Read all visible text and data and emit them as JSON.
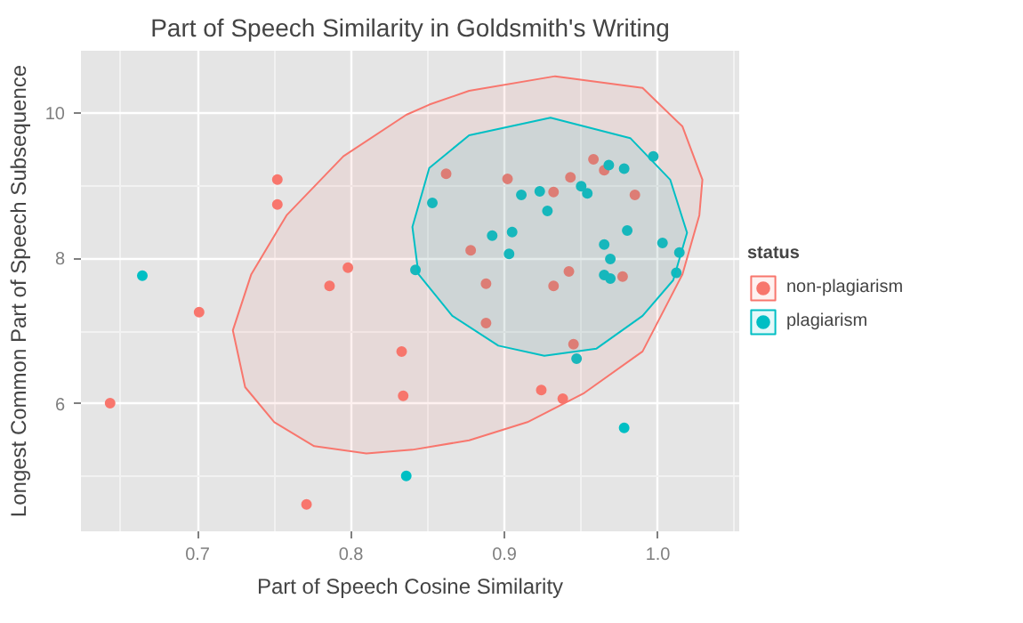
{
  "chart_data": {
    "type": "scatter",
    "title": "Part of Speech Similarity in Goldsmith's Writing",
    "xlabel": "Part of Speech Cosine Similarity",
    "ylabel": "Longest Common Part of Speech Subsequence",
    "legend_title": "status",
    "legend": "right",
    "grid": true,
    "marker": "circle",
    "xlim": [
      0.624,
      1.053
    ],
    "ylim": [
      4.25,
      10.85
    ],
    "xticks": [
      0.7,
      0.8,
      0.9,
      {
        "value": 1,
        "label": "1.0"
      }
    ],
    "yticks": [
      6,
      8,
      10
    ],
    "series": [
      {
        "name": "non-plagiarism",
        "color": "#f8766d",
        "type": "scatter",
        "x": [
          0.752,
          0.752,
          0.701,
          0.798,
          0.786,
          0.833,
          0.834,
          0.643,
          0.771,
          0.862,
          0.902,
          0.932,
          0.943,
          0.958,
          0.965,
          0.985,
          0.878,
          0.888,
          0.942,
          0.932,
          0.977,
          0.888,
          0.945,
          0.924,
          0.938
        ],
        "values": [
          9.08,
          8.74,
          7.26,
          7.87,
          7.62,
          6.72,
          6.11,
          6.01,
          4.62,
          9.16,
          9.09,
          8.91,
          9.11,
          9.36,
          9.21,
          8.87,
          8.11,
          7.65,
          7.82,
          7.62,
          7.75,
          7.11,
          6.82,
          6.19,
          6.07
        ]
      },
      {
        "name": "plagiarism",
        "color": "#00bfc4",
        "type": "scatter",
        "x": [
          0.664,
          0.842,
          0.836,
          0.968,
          0.978,
          0.997,
          0.853,
          0.911,
          0.923,
          0.928,
          0.95,
          0.954,
          0.892,
          0.905,
          0.903,
          0.98,
          0.965,
          0.969,
          1.003,
          1.014,
          1.012,
          0.965,
          0.969,
          0.947,
          0.978
        ],
        "values": [
          7.76,
          7.84,
          5.01,
          9.28,
          9.23,
          9.4,
          8.76,
          8.87,
          8.92,
          8.65,
          8.99,
          8.89,
          8.31,
          8.36,
          8.06,
          8.38,
          8.19,
          7.99,
          8.21,
          8.08,
          7.8,
          7.77,
          7.72,
          6.62,
          5.67
        ]
      },
      {
        "color": "#f8766d",
        "type": "area",
        "marker": "none",
        "x": [
          0.723,
          0.735,
          0.758,
          0.795,
          0.836,
          0.851,
          0.877,
          0.933,
          0.99,
          1.016,
          1.029,
          1.027,
          1.016,
          0.99,
          0.952,
          0.915,
          0.877,
          0.84,
          0.81,
          0.776,
          0.75,
          0.731
        ],
        "values": [
          7.01,
          7.78,
          8.59,
          9.4,
          9.97,
          10.11,
          10.3,
          10.5,
          10.34,
          9.81,
          9.08,
          8.59,
          7.78,
          6.72,
          6.15,
          5.75,
          5.5,
          5.37,
          5.32,
          5.42,
          5.75,
          6.23
        ]
      },
      {
        "color": "#00bfc4",
        "type": "area",
        "marker": "none",
        "x": [
          0.84,
          0.851,
          0.877,
          0.93,
          0.982,
          1.008,
          1.019,
          1.01,
          0.99,
          0.96,
          0.926,
          0.896,
          0.866,
          0.844
        ],
        "values": [
          8.43,
          9.24,
          9.69,
          9.93,
          9.65,
          9.08,
          8.35,
          7.7,
          7.21,
          6.76,
          6.66,
          6.8,
          7.21,
          7.78
        ]
      }
    ]
  }
}
